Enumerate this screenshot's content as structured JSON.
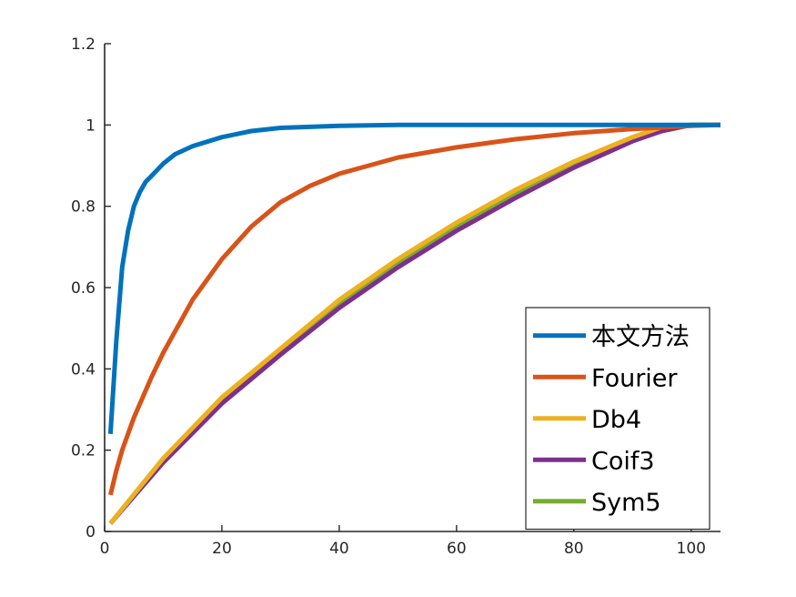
{
  "chart_data": {
    "type": "line",
    "title": "",
    "xlabel": "",
    "ylabel": "",
    "xlim": [
      0,
      105
    ],
    "ylim": [
      0,
      1.2
    ],
    "xticks": [
      0,
      20,
      40,
      60,
      80,
      100
    ],
    "yticks": [
      0,
      0.2,
      0.4,
      0.6,
      0.8,
      1,
      1.2
    ],
    "xtick_labels": [
      "0",
      "20",
      "40",
      "60",
      "80",
      "100"
    ],
    "ytick_labels": [
      "0",
      "0.2",
      "0.4",
      "0.6",
      "0.8",
      "1",
      "1.2"
    ],
    "grid": false,
    "legend_position": "bottom-right",
    "series": [
      {
        "name": "本文方法",
        "color": "#0072BD",
        "x": [
          1,
          2,
          3,
          4,
          5,
          6,
          7,
          8,
          10,
          12,
          15,
          20,
          25,
          30,
          40,
          50,
          60,
          80,
          100,
          105
        ],
        "y": [
          0.24,
          0.47,
          0.65,
          0.74,
          0.8,
          0.835,
          0.86,
          0.875,
          0.905,
          0.928,
          0.948,
          0.97,
          0.985,
          0.993,
          0.998,
          1.0,
          1.0,
          1.0,
          1.0,
          1.0
        ]
      },
      {
        "name": "Fourier",
        "color": "#D95319",
        "x": [
          1,
          2,
          3,
          5,
          8,
          10,
          15,
          20,
          25,
          30,
          35,
          40,
          50,
          60,
          70,
          80,
          90,
          100,
          105
        ],
        "y": [
          0.09,
          0.15,
          0.2,
          0.28,
          0.38,
          0.44,
          0.57,
          0.67,
          0.75,
          0.81,
          0.85,
          0.88,
          0.92,
          0.945,
          0.965,
          0.98,
          0.99,
          0.998,
          1.0
        ]
      },
      {
        "name": "Db4",
        "color": "#EDB120",
        "x": [
          1,
          10,
          20,
          30,
          40,
          50,
          60,
          70,
          80,
          90,
          95,
          100,
          105
        ],
        "y": [
          0.02,
          0.18,
          0.33,
          0.45,
          0.57,
          0.67,
          0.76,
          0.84,
          0.91,
          0.97,
          0.995,
          1.0,
          1.0
        ]
      },
      {
        "name": "Coif3",
        "color": "#7E2F8E",
        "x": [
          1,
          10,
          20,
          30,
          40,
          50,
          60,
          70,
          80,
          90,
          95,
          100,
          105
        ],
        "y": [
          0.02,
          0.17,
          0.315,
          0.435,
          0.55,
          0.65,
          0.74,
          0.82,
          0.895,
          0.96,
          0.985,
          1.0,
          1.0
        ]
      },
      {
        "name": "Sym5",
        "color": "#77AC30",
        "x": [
          1,
          10,
          20,
          30,
          40,
          50,
          60,
          70,
          80,
          90,
          95,
          100,
          105
        ],
        "y": [
          0.02,
          0.175,
          0.32,
          0.44,
          0.56,
          0.66,
          0.75,
          0.83,
          0.9,
          0.965,
          0.99,
          1.0,
          1.0
        ]
      }
    ]
  }
}
